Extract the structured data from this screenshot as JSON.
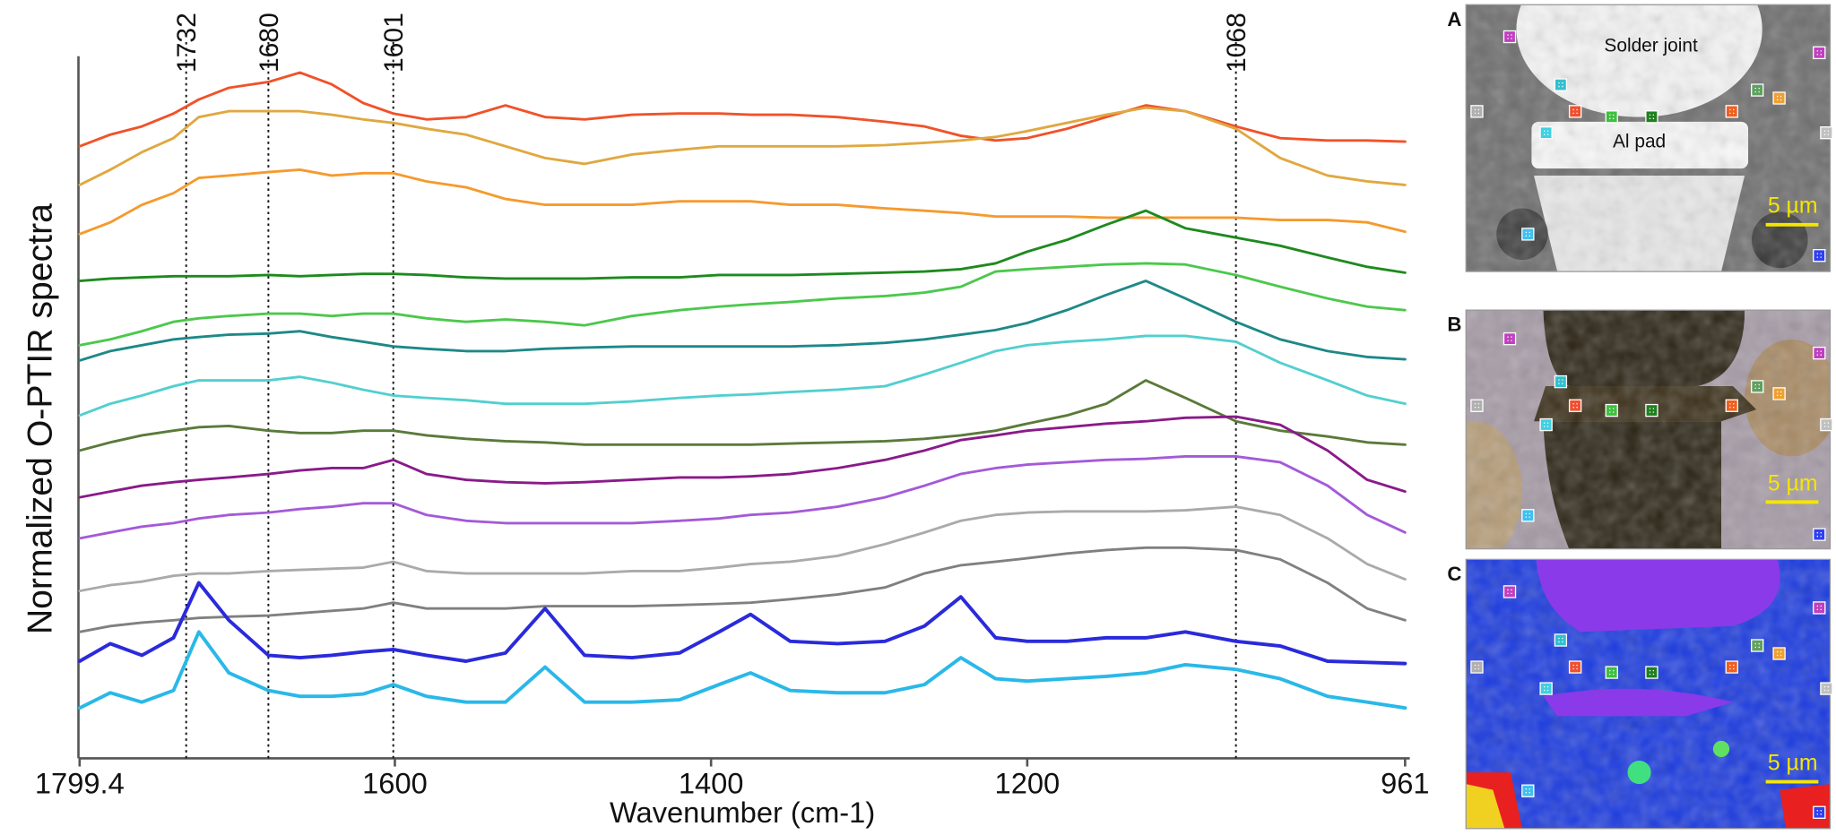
{
  "chart_data": {
    "type": "line",
    "x_label": "Wavenumber (cm-1)",
    "y_label": "Normalized O-PTIR spectra",
    "xlim": [
      1799.4,
      961
    ],
    "xticks": [
      1799.4,
      1600,
      1400,
      1200,
      961
    ],
    "ylim": [
      0,
      600
    ],
    "vlines": [
      1732,
      1680,
      1601,
      1068
    ],
    "x": [
      1799.4,
      1780,
      1760,
      1740,
      1724,
      1705,
      1680,
      1660,
      1640,
      1620,
      1601,
      1580,
      1555,
      1530,
      1505,
      1480,
      1450,
      1420,
      1395,
      1375,
      1350,
      1320,
      1290,
      1265,
      1242,
      1220,
      1200,
      1175,
      1150,
      1125,
      1100,
      1068,
      1040,
      1010,
      985,
      961
    ],
    "series": [
      {
        "color": "#f0522a",
        "values": [
          523,
          533,
          540,
          551,
          563,
          573,
          578,
          586,
          576,
          560,
          551,
          546,
          548,
          558,
          548,
          546,
          550,
          551,
          551,
          550,
          550,
          548,
          544,
          540,
          532,
          528,
          530,
          538,
          548,
          558,
          553,
          540,
          530,
          528,
          528,
          527
        ]
      },
      {
        "color": "#e0a841",
        "values": [
          490,
          503,
          518,
          530,
          548,
          553,
          553,
          553,
          550,
          546,
          543,
          538,
          533,
          523,
          513,
          508,
          516,
          520,
          523,
          523,
          523,
          523,
          524,
          526,
          528,
          531,
          536,
          543,
          550,
          556,
          553,
          538,
          513,
          498,
          493,
          490
        ]
      },
      {
        "color": "#f59a2e",
        "values": [
          448,
          458,
          473,
          483,
          496,
          498,
          501,
          503,
          498,
          500,
          500,
          493,
          488,
          478,
          473,
          473,
          473,
          476,
          476,
          476,
          473,
          473,
          470,
          468,
          466,
          463,
          463,
          463,
          462,
          462,
          462,
          462,
          460,
          460,
          458,
          450
        ]
      },
      {
        "color": "#1e8a1e",
        "values": [
          408,
          410,
          411,
          412,
          412,
          412,
          413,
          412,
          413,
          414,
          414,
          413,
          411,
          410,
          410,
          410,
          411,
          411,
          413,
          413,
          413,
          414,
          415,
          416,
          418,
          423,
          433,
          443,
          456,
          468,
          453,
          445,
          438,
          428,
          420,
          415
        ]
      },
      {
        "color": "#4cc84c",
        "values": [
          353,
          358,
          365,
          373,
          376,
          378,
          380,
          380,
          378,
          380,
          380,
          376,
          373,
          375,
          373,
          370,
          378,
          383,
          386,
          388,
          390,
          393,
          395,
          398,
          403,
          416,
          418,
          420,
          422,
          423,
          422,
          413,
          403,
          393,
          386,
          383
        ]
      },
      {
        "color": "#1e8888",
        "values": [
          340,
          348,
          353,
          358,
          360,
          362,
          363,
          365,
          360,
          356,
          352,
          350,
          348,
          348,
          350,
          351,
          352,
          352,
          352,
          352,
          352,
          353,
          355,
          358,
          362,
          366,
          372,
          383,
          396,
          408,
          393,
          373,
          358,
          348,
          343,
          341
        ]
      },
      {
        "color": "#52cfcf",
        "values": [
          293,
          303,
          310,
          318,
          323,
          323,
          323,
          326,
          321,
          315,
          310,
          308,
          306,
          303,
          303,
          303,
          305,
          308,
          310,
          311,
          313,
          315,
          318,
          328,
          338,
          348,
          353,
          356,
          358,
          361,
          361,
          356,
          338,
          323,
          310,
          303
        ]
      },
      {
        "color": "#5a7a3a",
        "values": [
          263,
          270,
          276,
          280,
          283,
          284,
          280,
          278,
          278,
          280,
          280,
          276,
          273,
          271,
          270,
          268,
          268,
          268,
          268,
          268,
          269,
          270,
          271,
          273,
          276,
          280,
          286,
          293,
          303,
          323,
          308,
          288,
          280,
          275,
          270,
          268
        ]
      },
      {
        "color": "#8a1a8a",
        "values": [
          223,
          228,
          233,
          236,
          238,
          240,
          243,
          246,
          248,
          248,
          255,
          243,
          238,
          236,
          235,
          236,
          238,
          240,
          240,
          241,
          243,
          248,
          255,
          263,
          272,
          276,
          280,
          283,
          286,
          288,
          291,
          292,
          285,
          263,
          238,
          228
        ]
      },
      {
        "color": "#a45ad8",
        "values": [
          188,
          193,
          198,
          201,
          205,
          208,
          210,
          213,
          215,
          218,
          218,
          208,
          203,
          201,
          201,
          201,
          201,
          203,
          205,
          208,
          210,
          215,
          223,
          233,
          243,
          248,
          251,
          253,
          255,
          256,
          258,
          258,
          253,
          233,
          208,
          193
        ]
      },
      {
        "color": "#aaaaaa",
        "values": [
          143,
          148,
          151,
          156,
          158,
          158,
          160,
          161,
          162,
          163,
          168,
          160,
          158,
          158,
          158,
          158,
          160,
          160,
          163,
          166,
          168,
          173,
          183,
          193,
          203,
          208,
          210,
          211,
          211,
          211,
          212,
          215,
          208,
          188,
          166,
          153
        ]
      },
      {
        "color": "#808080",
        "values": [
          108,
          113,
          116,
          118,
          120,
          121,
          122,
          124,
          126,
          128,
          133,
          128,
          128,
          128,
          130,
          130,
          130,
          131,
          132,
          133,
          136,
          140,
          146,
          158,
          165,
          168,
          171,
          175,
          178,
          180,
          180,
          178,
          170,
          150,
          128,
          118
        ]
      },
      {
        "color": "#2a2adc",
        "values": [
          83,
          98,
          88,
          103,
          150,
          118,
          88,
          86,
          88,
          91,
          93,
          88,
          83,
          90,
          128,
          88,
          86,
          90,
          108,
          123,
          100,
          98,
          100,
          113,
          138,
          103,
          100,
          100,
          103,
          103,
          108,
          100,
          96,
          83,
          82,
          81
        ]
      },
      {
        "color": "#2ab8e8",
        "values": [
          43,
          56,
          48,
          58,
          108,
          73,
          58,
          53,
          53,
          55,
          63,
          53,
          48,
          48,
          78,
          48,
          48,
          50,
          63,
          73,
          58,
          56,
          56,
          63,
          86,
          68,
          66,
          68,
          70,
          73,
          80,
          76,
          68,
          53,
          48,
          43
        ]
      }
    ]
  },
  "panels": [
    {
      "label": "A",
      "annotations": [
        "Solder joint",
        "Al pad"
      ],
      "scale_bar": "5 µm"
    },
    {
      "label": "B",
      "scale_bar": "5 µm"
    },
    {
      "label": "C",
      "scale_bar": "5 µm"
    }
  ]
}
